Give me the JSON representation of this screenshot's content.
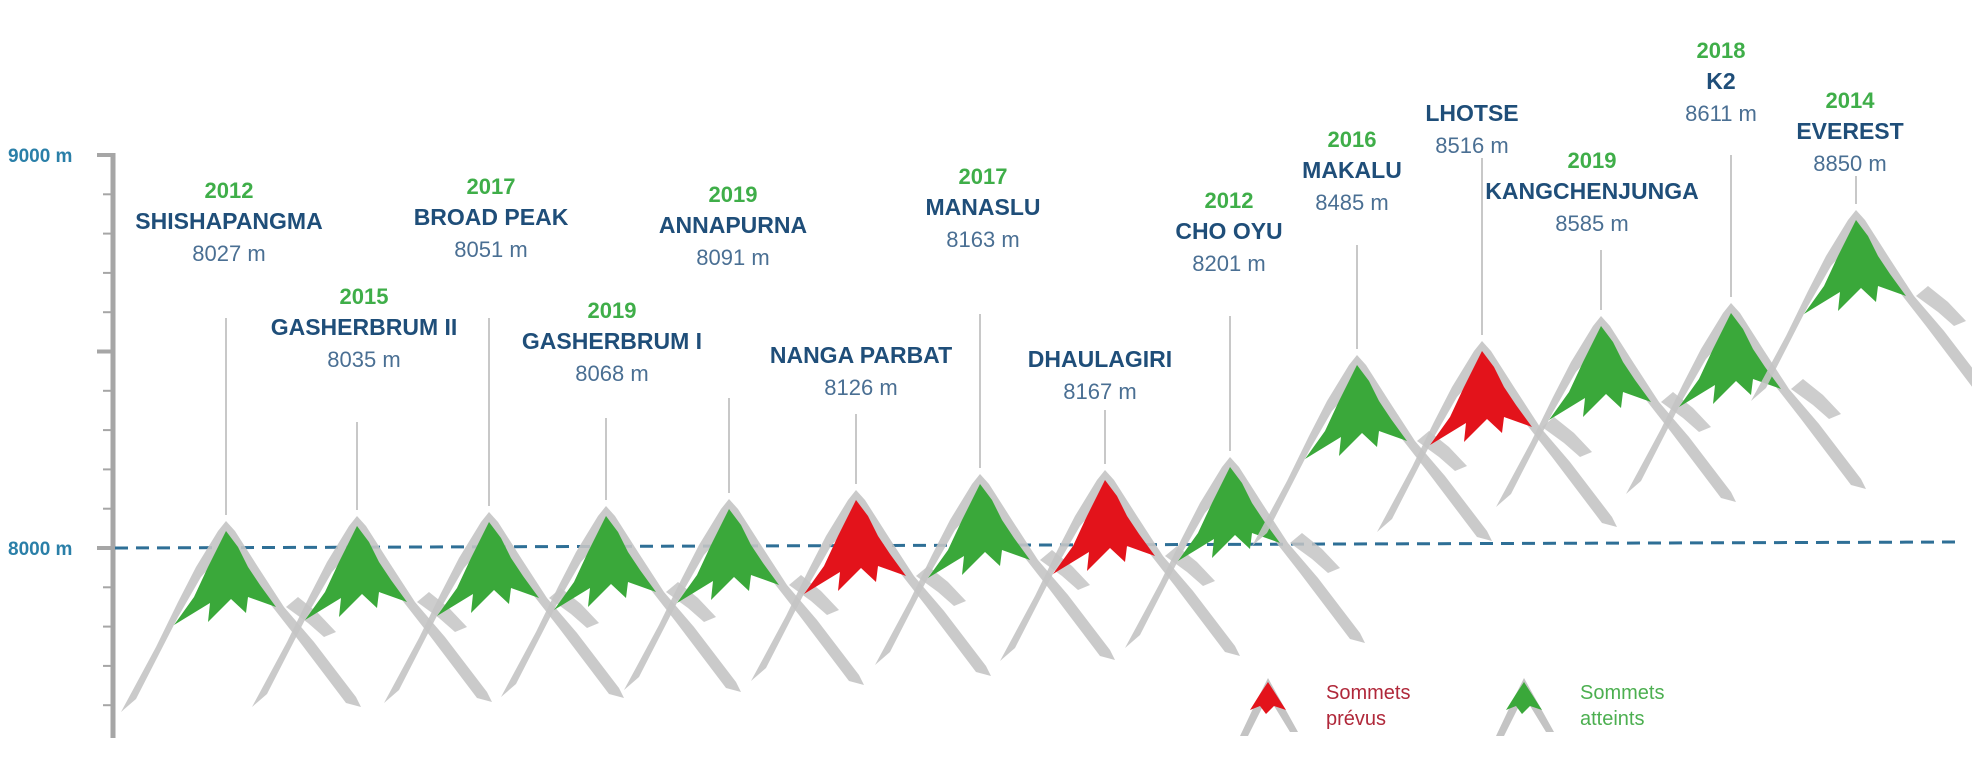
{
  "chart_data": {
    "type": "area",
    "title": "",
    "xlabel": "",
    "ylabel": "",
    "ylim": [
      7600,
      9000
    ],
    "y_ticks": [
      {
        "label": "9000 m",
        "value": 9000
      },
      {
        "label": "8000 m",
        "value": 8000
      }
    ],
    "reference_line": {
      "value": 8000,
      "style": "dashed"
    },
    "unit": "m",
    "peaks": [
      {
        "name": "SHISHAPANGMA",
        "year": "2012",
        "altitude": 8027,
        "altitude_label": "8027 m",
        "status": "atteint"
      },
      {
        "name": "GASHERBRUM II",
        "year": "2015",
        "altitude": 8035,
        "altitude_label": "8035 m",
        "status": "atteint"
      },
      {
        "name": "BROAD PEAK",
        "year": "2017",
        "altitude": 8051,
        "altitude_label": "8051 m",
        "status": "atteint"
      },
      {
        "name": "GASHERBRUM I",
        "year": "2019",
        "altitude": 8068,
        "altitude_label": "8068 m",
        "status": "atteint"
      },
      {
        "name": "ANNAPURNA",
        "year": "2019",
        "altitude": 8091,
        "altitude_label": "8091 m",
        "status": "atteint"
      },
      {
        "name": "NANGA PARBAT",
        "year": "",
        "altitude": 8126,
        "altitude_label": "8126 m",
        "status": "prevu"
      },
      {
        "name": "MANASLU",
        "year": "2017",
        "altitude": 8163,
        "altitude_label": "8163 m",
        "status": "atteint"
      },
      {
        "name": "DHAULAGIRI",
        "year": "",
        "altitude": 8167,
        "altitude_label": "8167 m",
        "status": "prevu"
      },
      {
        "name": "CHO OYU",
        "year": "2012",
        "altitude": 8201,
        "altitude_label": "8201 m",
        "status": "atteint"
      },
      {
        "name": "MAKALU",
        "year": "2016",
        "altitude": 8485,
        "altitude_label": "8485 m",
        "status": "atteint"
      },
      {
        "name": "LHOTSE",
        "year": "",
        "altitude": 8516,
        "altitude_label": "8516 m",
        "status": "prevu"
      },
      {
        "name": "KANGCHENJUNGA",
        "year": "2019",
        "altitude": 8585,
        "altitude_label": "8585 m",
        "status": "atteint"
      },
      {
        "name": "K2",
        "year": "2018",
        "altitude": 8611,
        "altitude_label": "8611 m",
        "status": "atteint"
      },
      {
        "name": "EVEREST",
        "year": "2014",
        "altitude": 8850,
        "altitude_label": "8850 m",
        "status": "atteint"
      }
    ],
    "legend": [
      {
        "key": "prevu",
        "label_line1": "Sommets",
        "label_line2": "prévus"
      },
      {
        "key": "atteint",
        "label_line1": "Sommets",
        "label_line2": "atteints"
      }
    ],
    "legend_placement": "bottom-right",
    "grid": false
  },
  "colors": {
    "axis": "#a6a6a6",
    "axis_label": "#2a7fa8",
    "dashed_line": "#2e6f96",
    "name": "#1f4e79",
    "altitude": "#4a6f93",
    "year": "#3fae49",
    "atteint": "#3aa83a",
    "prevu": "#e3131b",
    "rock": "#c4c4c4",
    "leader": "#c8c8c8",
    "legend_prevu_text": "#b0283a",
    "legend_atteint_text": "#4caf50"
  }
}
